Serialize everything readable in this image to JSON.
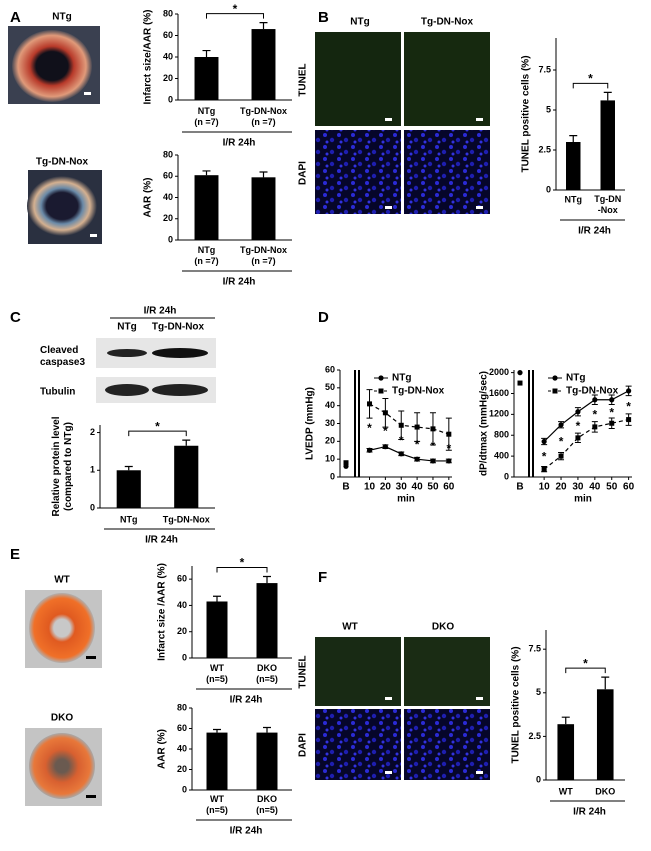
{
  "figure": {
    "panel_labels": [
      "A",
      "B",
      "C",
      "D",
      "E",
      "F"
    ],
    "heart_labels": [
      "NTg",
      "Tg-DN-Nox",
      "WT",
      "DKO"
    ],
    "micrograph_labels": [
      "NTg",
      "Tg-DN-Nox",
      "WT",
      "DKO"
    ],
    "stain_labels": [
      "TUNEL",
      "DAPI"
    ],
    "western_blot": {
      "condition": "I/R 24h",
      "lanes": [
        "NTg",
        "Tg-DN-Nox"
      ],
      "bands": [
        "Cleaved\ncaspase3",
        "Tubulin"
      ]
    }
  },
  "chart_data": [
    {
      "type": "bar",
      "ylabel": "Infarct size/AAR (%)",
      "categories": [
        "NTg\n(n =7)",
        "Tg-DN-Nox\n(n =7)"
      ],
      "values": [
        40,
        66
      ],
      "errors": [
        6,
        6
      ],
      "ylim": [
        0,
        80
      ],
      "yticks": [
        0,
        20,
        40,
        60,
        80
      ],
      "xlabel": "I/R 24h",
      "significance": "*",
      "color": "#000000"
    },
    {
      "type": "bar",
      "ylabel": "AAR (%)",
      "categories": [
        "NTg\n(n =7)",
        "Tg-DN-Nox\n(n =7)"
      ],
      "values": [
        61,
        59
      ],
      "errors": [
        4,
        5
      ],
      "ylim": [
        0,
        80
      ],
      "yticks": [
        0,
        20,
        40,
        60,
        80
      ],
      "xlabel": "I/R 24h",
      "color": "#000000"
    },
    {
      "type": "bar",
      "ylabel": "TUNEL positive cells (%)",
      "categories": [
        "NTg",
        "Tg-DN\n-Nox"
      ],
      "values": [
        3.0,
        5.6
      ],
      "errors": [
        0.4,
        0.5
      ],
      "ylim": [
        0,
        9.5
      ],
      "yticks": [
        0,
        2.5,
        5,
        7.5
      ],
      "xlabel": "I/R 24h",
      "significance": "*",
      "color": "#000000"
    },
    {
      "type": "bar",
      "ylabel": "Relative protein level\n(compared to NTg)",
      "categories": [
        "NTg",
        "Tg-DN-Nox"
      ],
      "values": [
        1.0,
        1.65
      ],
      "errors": [
        0.1,
        0.15
      ],
      "ylim": [
        0,
        2.2
      ],
      "yticks": [
        0,
        1,
        2
      ],
      "xlabel": "I/R 24h",
      "significance": "*",
      "color": "#000000"
    },
    {
      "type": "line",
      "ylabel": "LVEDP (mmHg)",
      "xlabel": "min",
      "baseline_label": "B",
      "x": [
        10,
        20,
        30,
        40,
        50,
        60
      ],
      "xlim": [
        4,
        62
      ],
      "xticks": [
        10,
        20,
        30,
        40,
        50,
        60
      ],
      "ylim": [
        0,
        60
      ],
      "yticks": [
        0,
        10,
        20,
        30,
        40,
        50,
        60
      ],
      "significance": "*",
      "significant_at": [
        10,
        20,
        30,
        40,
        50,
        60
      ],
      "series": [
        {
          "name": "NTg",
          "color": "#000000",
          "marker": "circle",
          "dashed": false,
          "baseline_value": 6,
          "values": [
            15,
            17,
            13,
            10,
            9,
            9
          ],
          "errors": [
            1,
            1,
            1,
            1,
            1,
            1
          ]
        },
        {
          "name": "Tg-DN-Nox",
          "color": "#000000",
          "marker": "square",
          "dashed": true,
          "baseline_value": 8,
          "values": [
            41,
            36,
            29,
            28,
            27,
            24
          ],
          "errors": [
            8,
            8,
            8,
            8,
            9,
            9
          ]
        }
      ]
    },
    {
      "type": "line",
      "ylabel": "dP/dtmax (mmHg/sec)",
      "xlabel": "min",
      "baseline_label": "B",
      "x": [
        10,
        20,
        30,
        40,
        50,
        60
      ],
      "xlim": [
        4,
        62
      ],
      "xticks": [
        10,
        20,
        30,
        40,
        50,
        60
      ],
      "ylim": [
        0,
        2050
      ],
      "yticks": [
        0,
        400,
        800,
        1200,
        1600,
        2000
      ],
      "significance": "*",
      "significant_at": [
        10,
        20,
        30,
        40,
        50,
        60
      ],
      "series": [
        {
          "name": "NTg",
          "color": "#000000",
          "marker": "circle",
          "dashed": false,
          "baseline_value": 2000,
          "values": [
            680,
            1000,
            1250,
            1480,
            1480,
            1650
          ],
          "errors": [
            60,
            60,
            80,
            90,
            90,
            90
          ]
        },
        {
          "name": "Tg-DN-Nox",
          "color": "#000000",
          "marker": "square",
          "dashed": true,
          "baseline_value": 1800,
          "values": [
            150,
            400,
            750,
            960,
            1030,
            1100
          ],
          "errors": [
            50,
            70,
            90,
            100,
            100,
            110
          ]
        }
      ]
    },
    {
      "type": "bar",
      "ylabel": "Infarct size /AAR (%)",
      "categories": [
        "WT\n(n=5)",
        "DKO\n(n=5)"
      ],
      "values": [
        43,
        57
      ],
      "errors": [
        4,
        5
      ],
      "ylim": [
        0,
        70
      ],
      "yticks": [
        0,
        20,
        40,
        60
      ],
      "xlabel": "I/R 24h",
      "significance": "*",
      "color": "#000000"
    },
    {
      "type": "bar",
      "ylabel": "AAR (%)",
      "categories": [
        "WT\n(n=5)",
        "DKO\n(n=5)"
      ],
      "values": [
        56,
        56
      ],
      "errors": [
        3,
        5
      ],
      "ylim": [
        0,
        80
      ],
      "yticks": [
        0,
        20,
        40,
        60,
        80
      ],
      "xlabel": "I/R 24h",
      "color": "#000000"
    },
    {
      "type": "bar",
      "ylabel": "TUNEL positive cells (%)",
      "categories": [
        "WT",
        "DKO"
      ],
      "values": [
        3.2,
        5.2
      ],
      "errors": [
        0.4,
        0.7
      ],
      "ylim": [
        0,
        8.6
      ],
      "yticks": [
        0,
        2.5,
        5,
        7.5
      ],
      "xlabel": "I/R 24h",
      "significance": "*",
      "color": "#000000"
    }
  ]
}
